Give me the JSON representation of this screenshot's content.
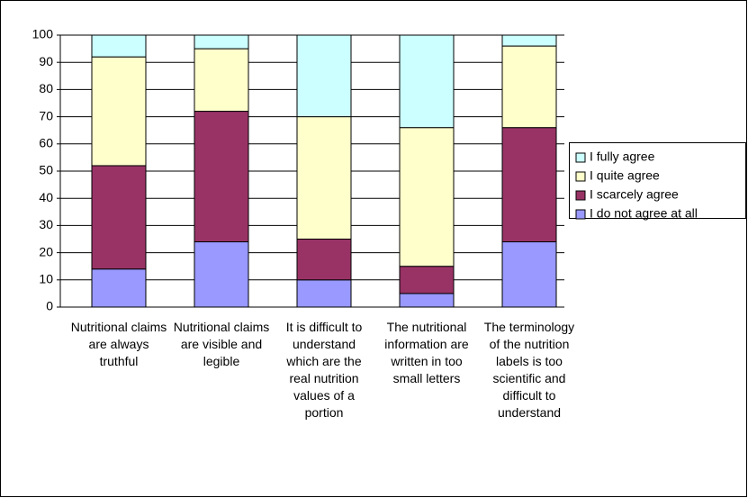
{
  "chart_data": {
    "type": "stacked_bar",
    "categories": [
      "Nutritional claims are always truthful",
      "Nutritional claims are visible and legible",
      "It is difficult to understand which are the real nutrition values of a portion",
      "The nutritional information are written in too small letters",
      "The terminology of the nutrition labels is too scientific and difficult to understand"
    ],
    "series": [
      {
        "name": "I do not agree at all",
        "color": "#9999ff",
        "values": [
          14,
          24,
          10,
          5,
          24
        ]
      },
      {
        "name": "I scarcely agree",
        "color": "#993366",
        "values": [
          38,
          48,
          15,
          10,
          42
        ]
      },
      {
        "name": "I quite agree",
        "color": "#ffffcc",
        "values": [
          40,
          23,
          45,
          51,
          30
        ]
      },
      {
        "name": "I fully agree",
        "color": "#ccffff",
        "values": [
          8,
          5,
          30,
          34,
          4
        ]
      }
    ],
    "ylim": [
      0,
      100
    ],
    "yticks": [
      0,
      10,
      20,
      30,
      40,
      50,
      60,
      70,
      80,
      90,
      100
    ],
    "grid": true,
    "legend": "right"
  }
}
